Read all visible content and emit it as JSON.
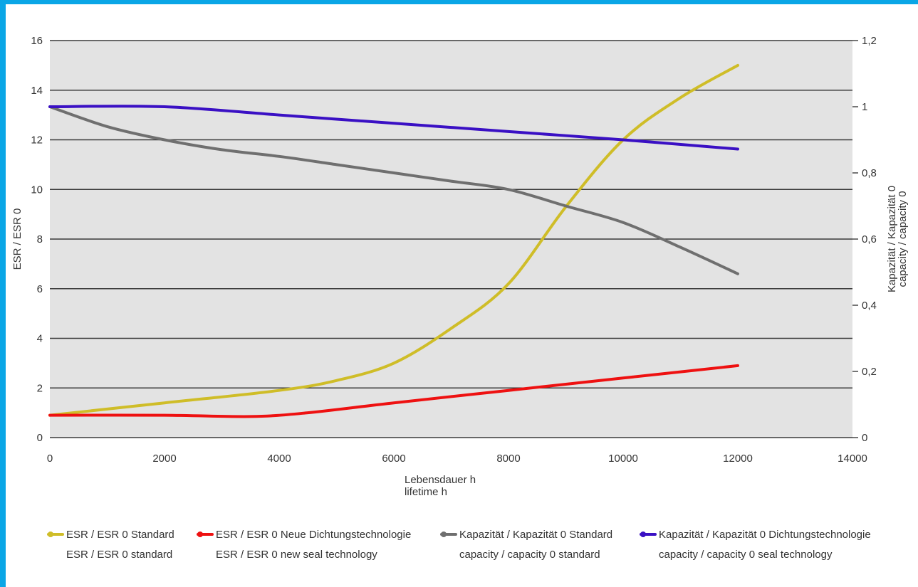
{
  "chart_data": {
    "type": "line",
    "xlabel": [
      "Lebensdauer h",
      "lifetime h"
    ],
    "ylabel_left": "ESR / ESR 0",
    "ylabel_right": [
      "Kapazität / Kapazität 0",
      "capacity / capacity 0"
    ],
    "xlim": [
      0,
      14000
    ],
    "ylim_left": [
      0,
      16
    ],
    "ylim_right": [
      0,
      1.2
    ],
    "x_ticks": [
      "0",
      "2000",
      "4000",
      "6000",
      "8000",
      "10000",
      "12000",
      "14000"
    ],
    "y_left_ticks": [
      "0",
      "2",
      "4",
      "6",
      "8",
      "10",
      "12",
      "14",
      "16"
    ],
    "y_right_ticks": [
      "0",
      "0,2",
      "0,4",
      "0,6",
      "0,8",
      "1",
      "1,2"
    ],
    "grid": true,
    "legend_position": "bottom",
    "series": [
      {
        "name": "ESR / ESR 0 Standard",
        "name2": "ESR / ESR 0 standard",
        "axis": "left",
        "color": "#cfbd28",
        "x": [
          0,
          2000,
          4000,
          5000,
          6000,
          7000,
          8000,
          9000,
          10000,
          11000,
          12000
        ],
        "y": [
          0.9,
          1.4,
          1.9,
          2.3,
          3.0,
          4.4,
          6.2,
          9.3,
          12.0,
          13.7,
          15.0
        ]
      },
      {
        "name": "ESR / ESR 0 Neue Dichtungstechnologie",
        "name2": "ESR / ESR 0 new seal technology",
        "axis": "left",
        "color": "#ee1111",
        "x": [
          0,
          2000,
          3500,
          4500,
          6000,
          8000,
          10000,
          12000
        ],
        "y": [
          0.9,
          0.9,
          0.85,
          1.0,
          1.4,
          1.9,
          2.4,
          2.9
        ]
      },
      {
        "name": "Kapazität / Kapazität 0 Standard",
        "name2": "capacity / capacity 0 standard",
        "axis": "right",
        "color": "#6f6f6f",
        "x": [
          0,
          1000,
          2000,
          3000,
          4000,
          5000,
          6000,
          7000,
          8000,
          9000,
          10000,
          11000,
          12000
        ],
        "y": [
          1.0,
          0.94,
          0.9,
          0.87,
          0.85,
          0.825,
          0.8,
          0.775,
          0.75,
          0.7,
          0.65,
          0.575,
          0.495
        ]
      },
      {
        "name": "Kapazität / Kapazität 0 Dichtungstechnologie",
        "name2": "capacity / capacity 0 seal technology",
        "axis": "right",
        "color": "#3a10c4",
        "x": [
          0,
          2000,
          4000,
          6000,
          8000,
          10000,
          12000
        ],
        "y": [
          1.0,
          1.0,
          0.975,
          0.95,
          0.925,
          0.9,
          0.872
        ]
      }
    ]
  }
}
